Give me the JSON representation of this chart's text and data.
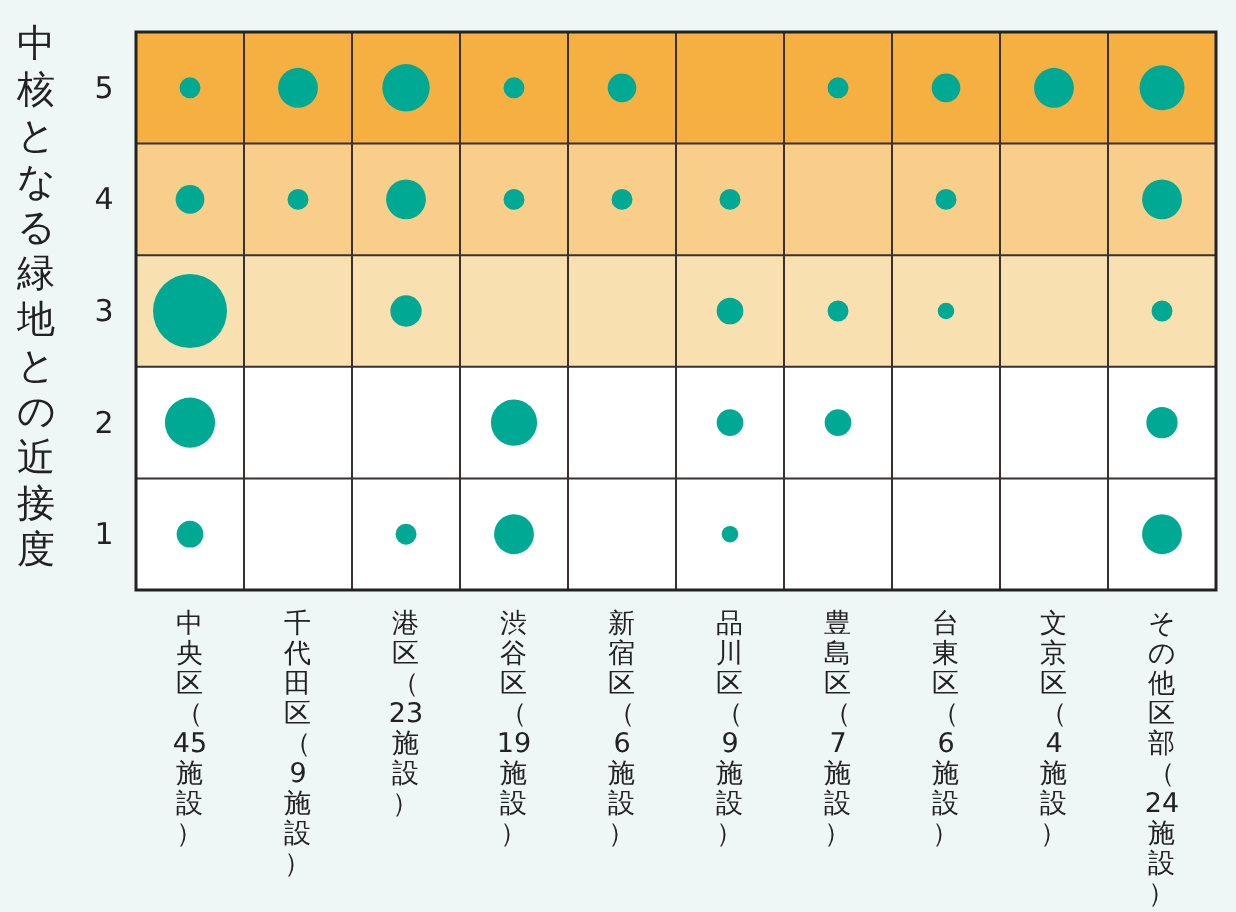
{
  "chart_data": {
    "type": "bubble",
    "ylabel": "中核となる緑地との近接度",
    "categories": [
      "中央区（45施設）",
      "千代田区（9施設）",
      "港区（23施設）",
      "渋谷区（19施設）",
      "新宿区（6施設）",
      "品川区（9施設）",
      "豊島区（7施設）",
      "台東区（6施設）",
      "文京区（4施設）",
      "その他区部（24施設）"
    ],
    "series": [
      {
        "color": "#00a994",
        "values": [
          5,
          5,
          5,
          5,
          5,
          null,
          5,
          5,
          5,
          5
        ],
        "sizes": [
          0.08,
          0.29,
          0.41,
          0.08,
          0.15,
          null,
          0.08,
          0.15,
          0.29,
          0.37
        ]
      },
      {
        "color": "#00a994",
        "values": [
          4,
          4,
          4,
          4,
          4,
          4,
          null,
          4,
          null,
          4
        ],
        "sizes": [
          0.15,
          0.08,
          0.29,
          0.08,
          0.08,
          0.08,
          null,
          0.08,
          null,
          0.29
        ]
      },
      {
        "color": "#00a994",
        "values": [
          3,
          null,
          3,
          null,
          null,
          3,
          3,
          3,
          null,
          3
        ],
        "sizes": [
          1,
          null,
          0.18,
          null,
          null,
          0.13,
          0.08,
          0.05,
          null,
          0.08
        ]
      },
      {
        "color": "#00a994",
        "values": [
          2,
          null,
          null,
          2,
          null,
          2,
          2,
          null,
          null,
          2
        ],
        "sizes": [
          0.46,
          null,
          null,
          0.39,
          null,
          0.13,
          0.13,
          null,
          null,
          0.18
        ]
      },
      {
        "color": "#00a994",
        "values": [
          1,
          null,
          1,
          1,
          null,
          1,
          null,
          null,
          null,
          1
        ],
        "sizes": [
          0.13,
          null,
          0.08,
          0.29,
          null,
          0.05,
          null,
          null,
          null,
          0.29
        ]
      }
    ],
    "ylim": [
      0.5,
      5.5
    ],
    "yticks": [
      1,
      2,
      3,
      4,
      5
    ],
    "grid": true,
    "bands": [
      {
        "axis": "y",
        "from": 4.5,
        "to": 5.5,
        "color": "#f5b041"
      },
      {
        "axis": "y",
        "from": 3.5,
        "to": 4.5,
        "color": "#f9cd8a"
      },
      {
        "axis": "y",
        "from": 2.5,
        "to": 3.5,
        "color": "#f9e0b0"
      }
    ]
  }
}
